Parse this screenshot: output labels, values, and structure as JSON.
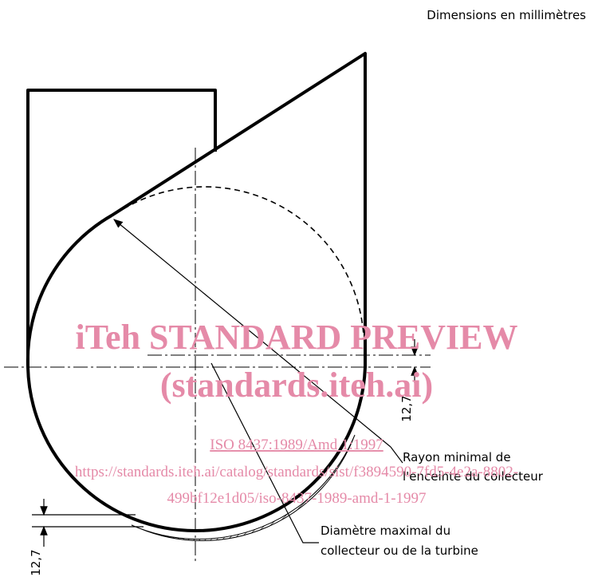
{
  "header": {
    "units_note": "Dimensions en millimètres"
  },
  "labels": {
    "radius": [
      "Rayon minimal de",
      "l'enceinte du collecteur"
    ],
    "diameter": [
      "Diamètre maximal du",
      "collecteur ou de la turbine"
    ],
    "dim_right": "12,7",
    "dim_bottom": "12,7"
  },
  "watermark": {
    "title": "iTeh STANDARD PREVIEW",
    "site": "(standards.iteh.ai)",
    "doc": "ISO 8437:1989/Amd 1:1997",
    "url": [
      "https://standards.iteh.ai/catalog/standards/sist/f3894590-7fd5-4e2a-8802-",
      "499bf12e1d05/iso-8437-1989-amd-1-1997"
    ]
  }
}
